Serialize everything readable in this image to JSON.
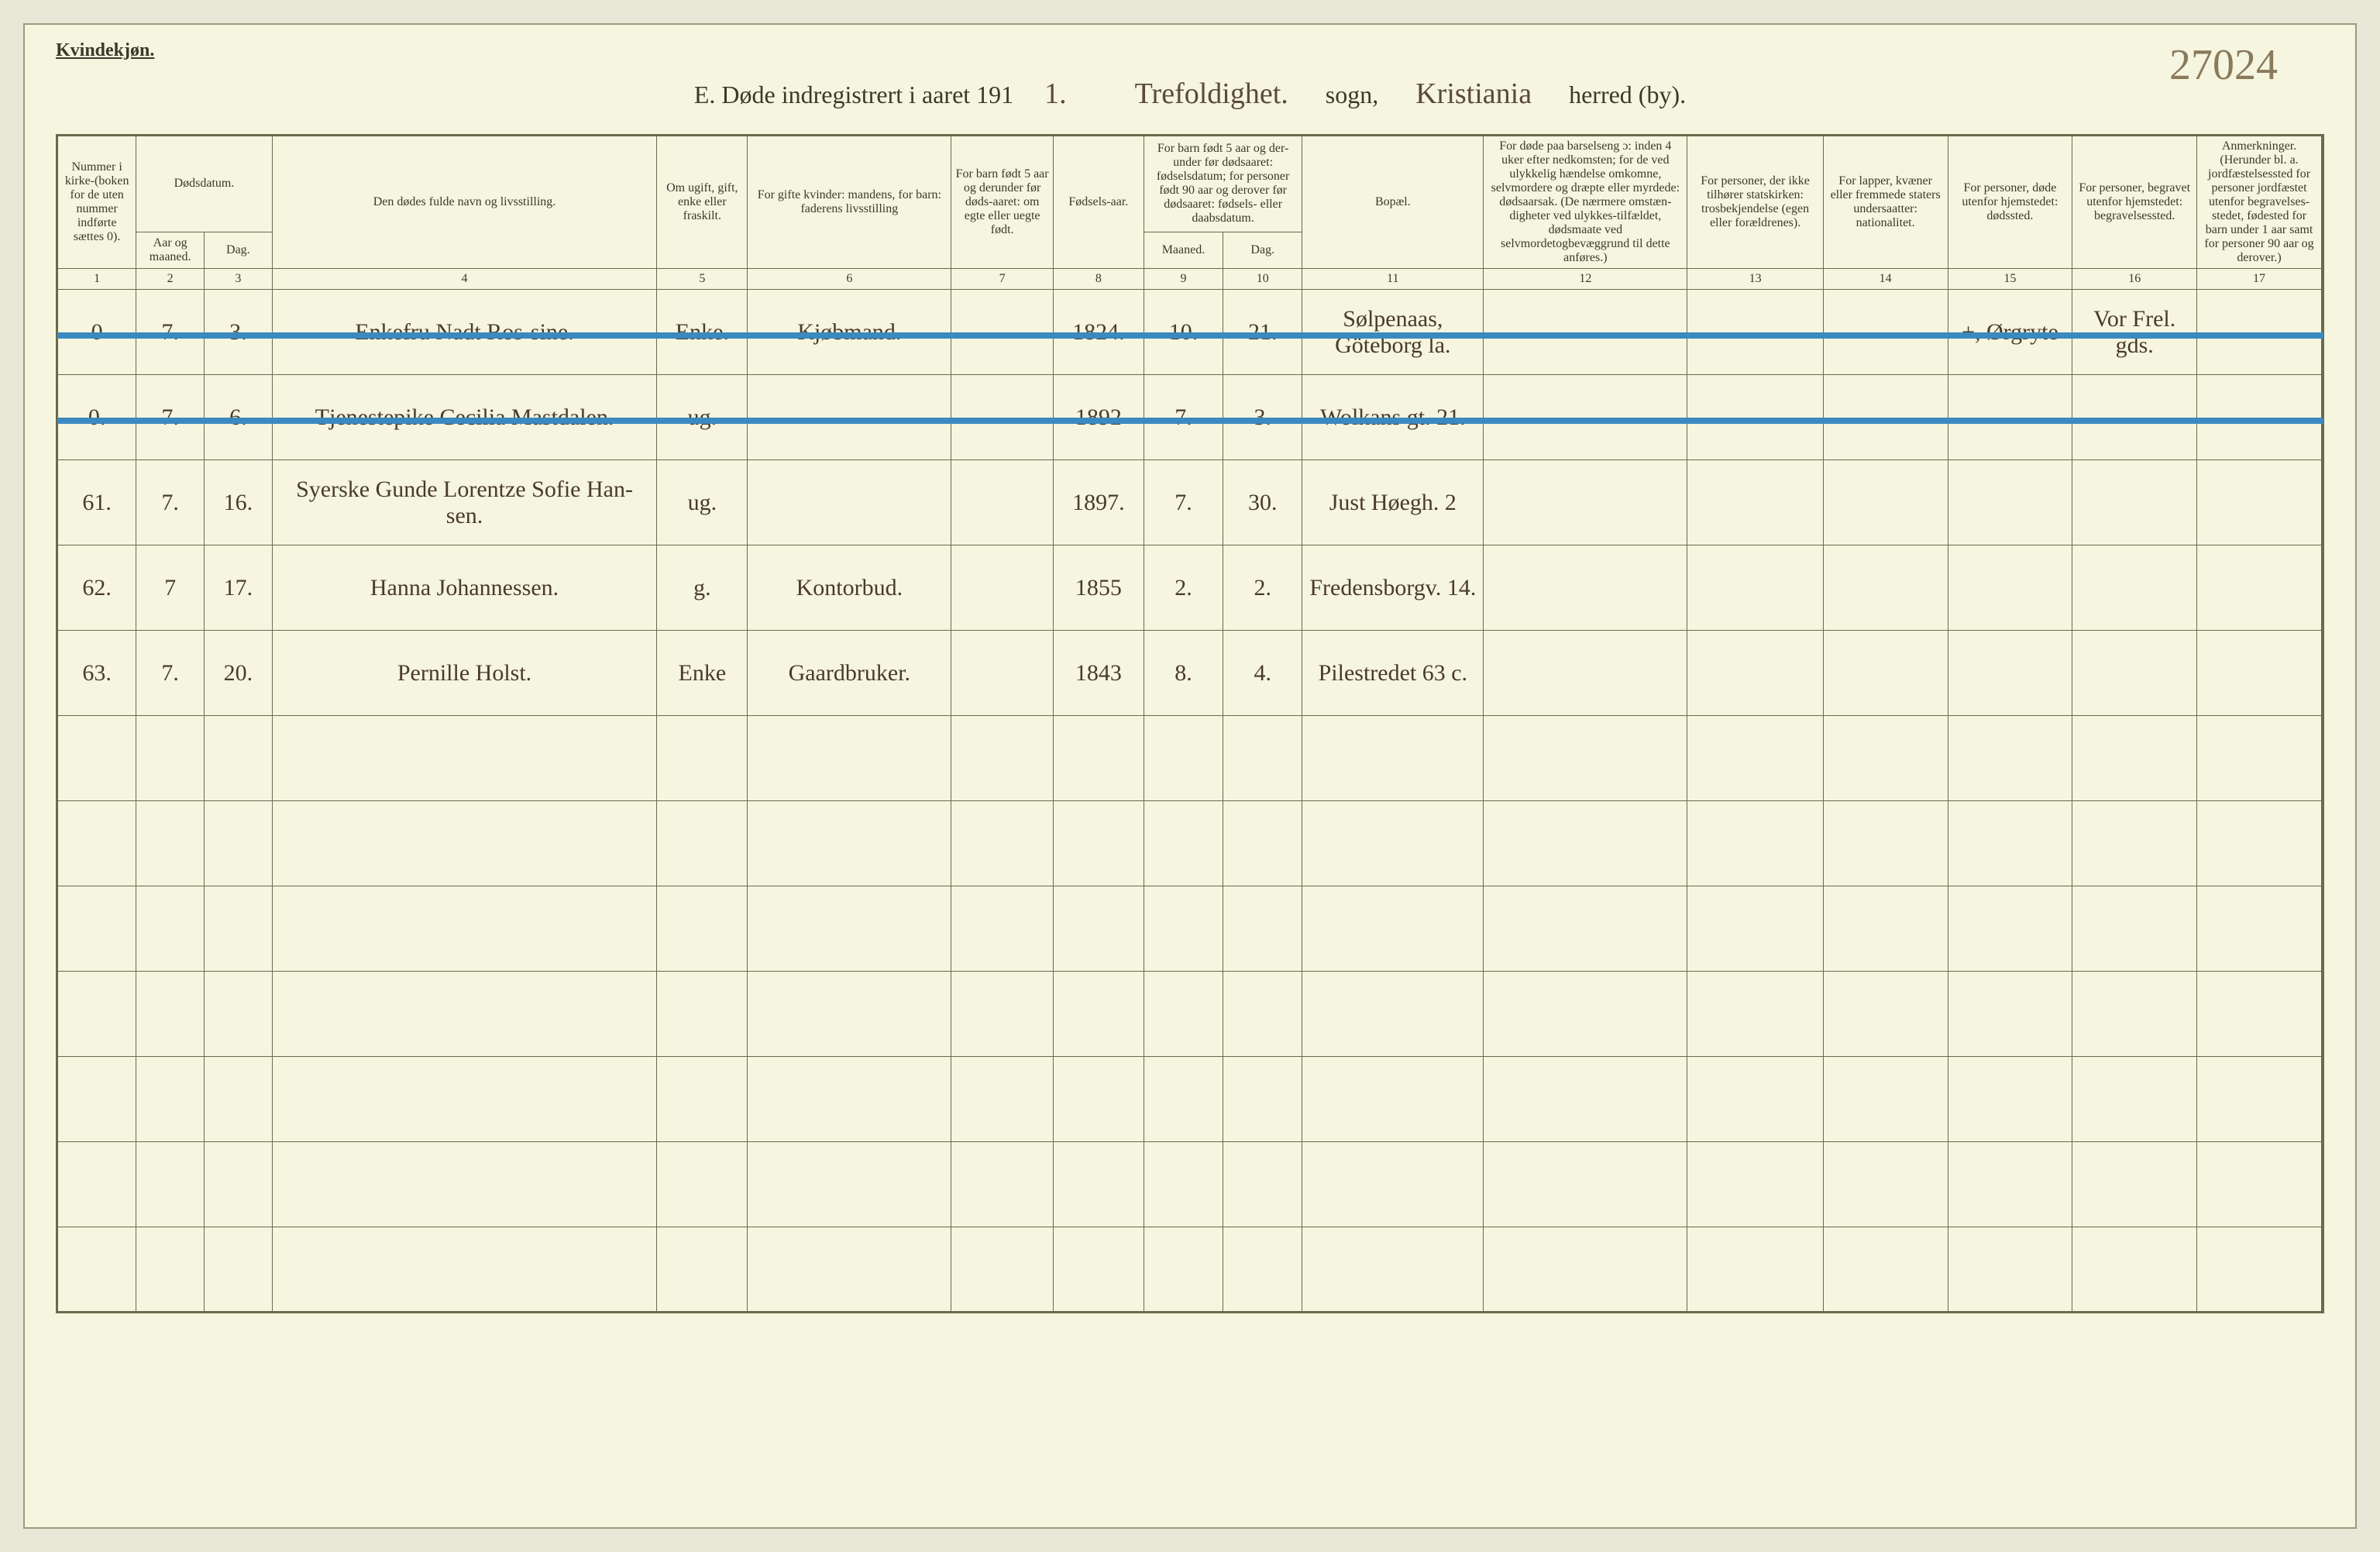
{
  "page_number_handwritten": "27024",
  "top_label": "Kvindekjøn.",
  "title": {
    "prefix": "E.  Døde indregistrert i aaret 191",
    "year_digit": "1.",
    "parish_handwritten": "Trefoldighet.",
    "sogn_label": "sogn,",
    "district_handwritten": "Kristiania",
    "herred_label": "herred (by)."
  },
  "headers": {
    "col1": "Nummer i kirke-(boken for de uten nummer indførte sættes 0).",
    "col2_3_group": "Dødsdatum.",
    "col2": "Aar og maaned.",
    "col3": "Dag.",
    "col4": "Den dødes fulde navn og livsstilling.",
    "col5": "Om ugift, gift, enke eller fraskilt.",
    "col6": "For gifte kvinder: mandens, for barn: faderens livsstilling",
    "col7": "For barn født 5 aar og derunder før døds-aaret: om egte eller uegte født.",
    "col8": "Fødsels-aar.",
    "col9_10_group": "For barn født 5 aar og der-under før dødsaaret: fødselsdatum; for personer født 90 aar og derover før dødsaaret: fødsels- eller daabsdatum.",
    "col9": "Maaned.",
    "col10": "Dag.",
    "col11": "Bopæl.",
    "col12": "For døde paa barselseng ɔ: inden 4 uker efter nedkomsten; for de ved ulykkelig hændelse omkomne, selvmordere og dræpte eller myrdede: dødsaarsak. (De nærmere omstæn-digheter ved ulykkes-tilfældet, dødsmaate ved selvmordetogbevæggrund til dette anføres.)",
    "col13": "For personer, der ikke tilhører statskirken: trosbekjendelse (egen eller forældrenes).",
    "col14": "For lapper, kvæner eller fremmede staters undersaatter: nationalitet.",
    "col15": "For personer, døde utenfor hjemstedet: dødssted.",
    "col16": "For personer, begravet utenfor hjemstedet: begravelsessted.",
    "col17": "Anmerkninger. (Herunder bl. a. jordfæstelsessted for personer jordfæstet utenfor begravelses-stedet, fødested for barn under 1 aar samt for personer 90 aar og derover.)"
  },
  "colnums": [
    "1",
    "2",
    "3",
    "4",
    "5",
    "6",
    "7",
    "8",
    "9",
    "10",
    "11",
    "12",
    "13",
    "14",
    "15",
    "16",
    "17"
  ],
  "rows": [
    {
      "num": "0",
      "month": "7.",
      "day": "3.",
      "name": "Enkefru Nadt Ros-sine.",
      "status": "Enke.",
      "occupation": "Kjøbmand.",
      "birth": "1824.",
      "m": "10.",
      "d": "21.",
      "residence": "Sølpenaas, Göteborg la.",
      "c15": "+, Ørgryte",
      "c16": "Vor Frel. gds.",
      "struck": true
    },
    {
      "num": "0.",
      "month": "7.",
      "day": "6.",
      "name": "Tjenestepike Cecilia Mastdalen.",
      "status": "ug.",
      "occupation": "",
      "birth": "1892",
      "m": "7.",
      "d": "3.",
      "residence": "Wolkans gt. 21.",
      "c15": "",
      "c16": "",
      "struck": true
    },
    {
      "num": "61.",
      "month": "7.",
      "day": "16.",
      "name": "Syerske Gunde Lorentze Sofie Han-sen.",
      "status": "ug.",
      "occupation": "",
      "birth": "1897.",
      "m": "7.",
      "d": "30.",
      "residence": "Just Høegh. 2",
      "c15": "",
      "c16": "",
      "struck": false
    },
    {
      "num": "62.",
      "month": "7",
      "day": "17.",
      "name": "Hanna Johannessen.",
      "status": "g.",
      "occupation": "Kontorbud.",
      "birth": "1855",
      "m": "2.",
      "d": "2.",
      "residence": "Fredensborgv. 14.",
      "c15": "",
      "c16": "",
      "struck": false
    },
    {
      "num": "63.",
      "month": "7.",
      "day": "20.",
      "name": "Pernille Holst.",
      "status": "Enke",
      "occupation": "Gaardbruker.",
      "birth": "1843",
      "m": "8.",
      "d": "4.",
      "residence": "Pilestredet 63 c.",
      "c15": "",
      "c16": "",
      "struck": false
    }
  ],
  "empty_rows": 7,
  "colors": {
    "paper": "#f5f5e0",
    "border": "#6a6a4a",
    "ink": "#4a3a2a",
    "blue_pencil": "#3a8ac0"
  },
  "column_widths_pct": [
    3.5,
    3,
    3,
    17,
    4,
    9,
    4.5,
    4,
    3.5,
    3.5,
    8,
    9,
    6,
    5.5,
    5.5,
    5.5,
    5.5
  ]
}
